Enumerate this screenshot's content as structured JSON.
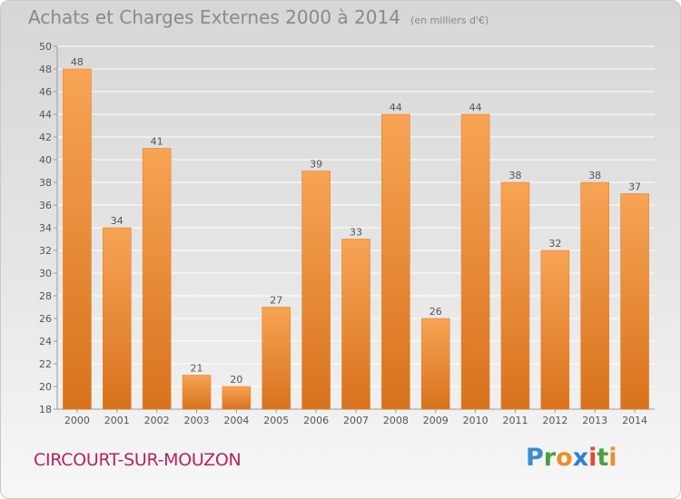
{
  "title": {
    "main": "Achats et Charges Externes 2000 à 2014",
    "unit": "(en milliers d'€)"
  },
  "city": "CIRCOURT-SUR-MOUZON",
  "logo": "Proxiti",
  "colors": {
    "bar_light": "#f7a455",
    "bar_dark": "#d8721c",
    "city": "#b5245c",
    "axis_text": "#555555"
  },
  "chart_data": {
    "type": "bar",
    "title": "Achats et Charges Externes 2000 à 2014",
    "unit": "(en milliers d'€)",
    "categories": [
      "2000",
      "2001",
      "2002",
      "2003",
      "2004",
      "2005",
      "2006",
      "2007",
      "2008",
      "2009",
      "2010",
      "2011",
      "2012",
      "2013",
      "2014"
    ],
    "values": [
      48,
      34,
      41,
      21,
      20,
      27,
      39,
      33,
      44,
      26,
      44,
      38,
      32,
      38,
      37
    ],
    "ylim": [
      18,
      50
    ],
    "yticks": [
      18,
      20,
      22,
      24,
      26,
      28,
      30,
      32,
      34,
      36,
      38,
      40,
      42,
      44,
      46,
      48,
      50
    ],
    "grid": true,
    "data_labels": true
  }
}
